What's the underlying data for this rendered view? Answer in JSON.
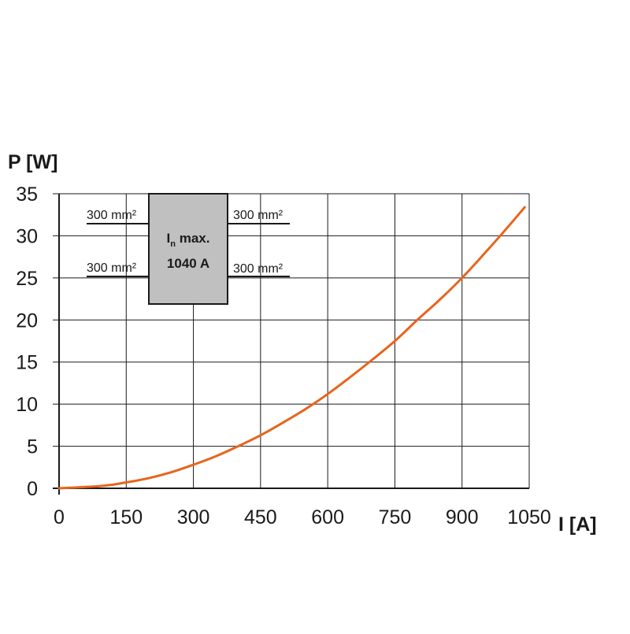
{
  "chart_data": {
    "type": "line",
    "ylabel": "P [W]",
    "xlabel": "I [A]",
    "xlim": [
      0,
      1050
    ],
    "ylim": [
      0,
      35
    ],
    "x_ticks": [
      "0",
      "150",
      "300",
      "450",
      "600",
      "750",
      "900",
      "1050"
    ],
    "y_ticks": [
      "0",
      "5",
      "10",
      "15",
      "20",
      "25",
      "30",
      "35"
    ],
    "grid": true,
    "series": [
      {
        "color": "#e8641c",
        "x": [
          0,
          100,
          150,
          200,
          250,
          300,
          350,
          400,
          450,
          500,
          550,
          600,
          650,
          700,
          750,
          800,
          850,
          900,
          950,
          1000,
          1040
        ],
        "y": [
          0,
          0.3,
          0.7,
          1.2,
          1.9,
          2.8,
          3.8,
          5.0,
          6.3,
          7.8,
          9.4,
          11.2,
          13.2,
          15.3,
          17.5,
          20.0,
          22.4,
          25.0,
          27.9,
          30.9,
          33.4
        ]
      }
    ],
    "annotation": {
      "line1_main": "I",
      "line1_sub": "n",
      "line1_rest": " max.",
      "line2": "1040 A",
      "conductor_labels": [
        "300 mm²",
        "300 mm²",
        "300 mm²",
        "300 mm²"
      ],
      "box_fill": "#c0c0c0"
    }
  }
}
